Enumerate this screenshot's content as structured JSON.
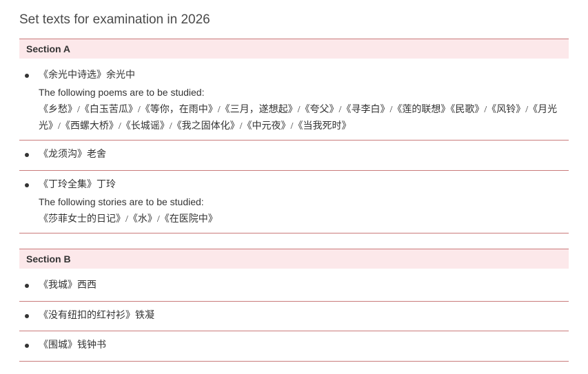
{
  "page_title": "Set texts for examination in 2026",
  "colors": {
    "section_bg": "#fce8ea",
    "divider": "#c97a7a",
    "text": "#333333",
    "title_text": "#4a4a4a",
    "background": "#ffffff"
  },
  "sections": [
    {
      "header": "Section A",
      "items": [
        {
          "title": "《余光中诗选》余光中",
          "note": "The following poems are to be studied:",
          "works": "《乡愁》/《白玉苦瓜》/《等你，在雨中》/《三月，遂想起》/《夸父》/《寻李白》/《莲的联想》《民歌》/《风铃》/《月光光》/《西螺大桥》/《长城谣》/《我之固体化》/《中元夜》/《当我死时》"
        },
        {
          "title": "《龙须沟》老舍"
        },
        {
          "title": "《丁玲全集》丁玲",
          "note": "The following stories are to be studied:",
          "works": "《莎菲女士的日记》/《水》/《在医院中》"
        }
      ]
    },
    {
      "header": "Section B",
      "items": [
        {
          "title": "《我城》西西"
        },
        {
          "title": "《没有纽扣的红衬衫》铁凝"
        },
        {
          "title": "《围城》钱钟书"
        }
      ]
    }
  ]
}
